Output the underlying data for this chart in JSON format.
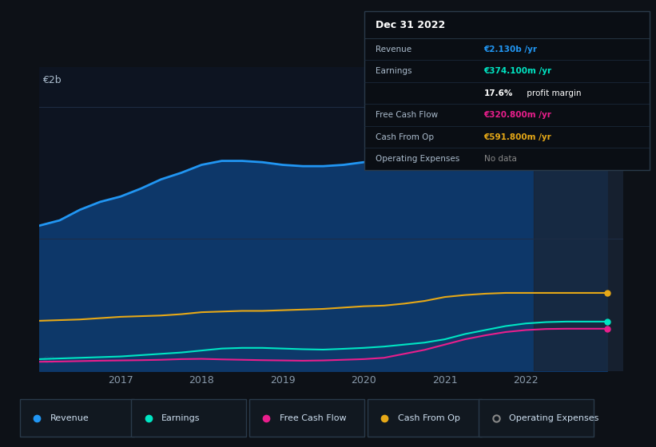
{
  "bg_color": "#0d1117",
  "plot_bg_color": "#0d1421",
  "grid_color": "#1e2d45",
  "x_years": [
    2016.0,
    2016.25,
    2016.5,
    2016.75,
    2017.0,
    2017.25,
    2017.5,
    2017.75,
    2018.0,
    2018.25,
    2018.5,
    2018.75,
    2019.0,
    2019.25,
    2019.5,
    2019.75,
    2020.0,
    2020.25,
    2020.5,
    2020.75,
    2021.0,
    2021.25,
    2021.5,
    2021.75,
    2022.0,
    2022.25,
    2022.5,
    2022.75,
    2023.0
  ],
  "revenue": [
    1100,
    1140,
    1220,
    1280,
    1320,
    1380,
    1450,
    1500,
    1560,
    1590,
    1590,
    1580,
    1560,
    1550,
    1550,
    1560,
    1580,
    1590,
    1600,
    1650,
    1720,
    1800,
    1900,
    1980,
    2050,
    2100,
    2130,
    2130,
    2130
  ],
  "earnings": [
    90,
    95,
    100,
    105,
    110,
    120,
    130,
    140,
    155,
    170,
    175,
    175,
    170,
    165,
    162,
    168,
    175,
    185,
    200,
    215,
    240,
    280,
    310,
    340,
    360,
    370,
    374,
    374,
    374
  ],
  "free_cash_flow": [
    70,
    72,
    75,
    78,
    80,
    82,
    85,
    90,
    92,
    88,
    85,
    82,
    80,
    78,
    80,
    85,
    90,
    100,
    130,
    160,
    200,
    240,
    270,
    295,
    310,
    318,
    320,
    320,
    320
  ],
  "cash_from_op": [
    380,
    385,
    390,
    400,
    410,
    415,
    420,
    430,
    445,
    450,
    455,
    455,
    460,
    465,
    470,
    480,
    490,
    495,
    510,
    530,
    560,
    575,
    585,
    591,
    591,
    591,
    591,
    591,
    591
  ],
  "revenue_color": "#2196f3",
  "earnings_color": "#00e5c3",
  "free_cash_flow_color": "#e91e8c",
  "cash_from_op_color": "#e6a817",
  "divider_x": 2022.1,
  "ylim": [
    0,
    2300
  ],
  "xlim": [
    2016.0,
    2023.2
  ],
  "x_tick_positions": [
    2017,
    2018,
    2019,
    2020,
    2021,
    2022
  ],
  "x_tick_labels": [
    "2017",
    "2018",
    "2019",
    "2020",
    "2021",
    "2022"
  ],
  "info_box": {
    "title": "Dec 31 2022",
    "rows": [
      {
        "label": "Revenue",
        "value": "€2.130b /yr",
        "value_color": "#2196f3"
      },
      {
        "label": "Earnings",
        "value": "€374.100m /yr",
        "value_color": "#00e5c3"
      },
      {
        "label": "",
        "value": "17.6% profit margin",
        "value_color": "#ffffff",
        "bold_part": "17.6%"
      },
      {
        "label": "Free Cash Flow",
        "value": "€320.800m /yr",
        "value_color": "#e91e8c"
      },
      {
        "label": "Cash From Op",
        "value": "€591.800m /yr",
        "value_color": "#e6a817"
      },
      {
        "label": "Operating Expenses",
        "value": "No data",
        "value_color": "#888888"
      }
    ]
  },
  "legend": [
    {
      "label": "Revenue",
      "color": "#2196f3",
      "empty": false
    },
    {
      "label": "Earnings",
      "color": "#00e5c3",
      "empty": false
    },
    {
      "label": "Free Cash Flow",
      "color": "#e91e8c",
      "empty": false
    },
    {
      "label": "Cash From Op",
      "color": "#e6a817",
      "empty": false
    },
    {
      "label": "Operating Expenses",
      "color": "#888888",
      "empty": true
    }
  ]
}
